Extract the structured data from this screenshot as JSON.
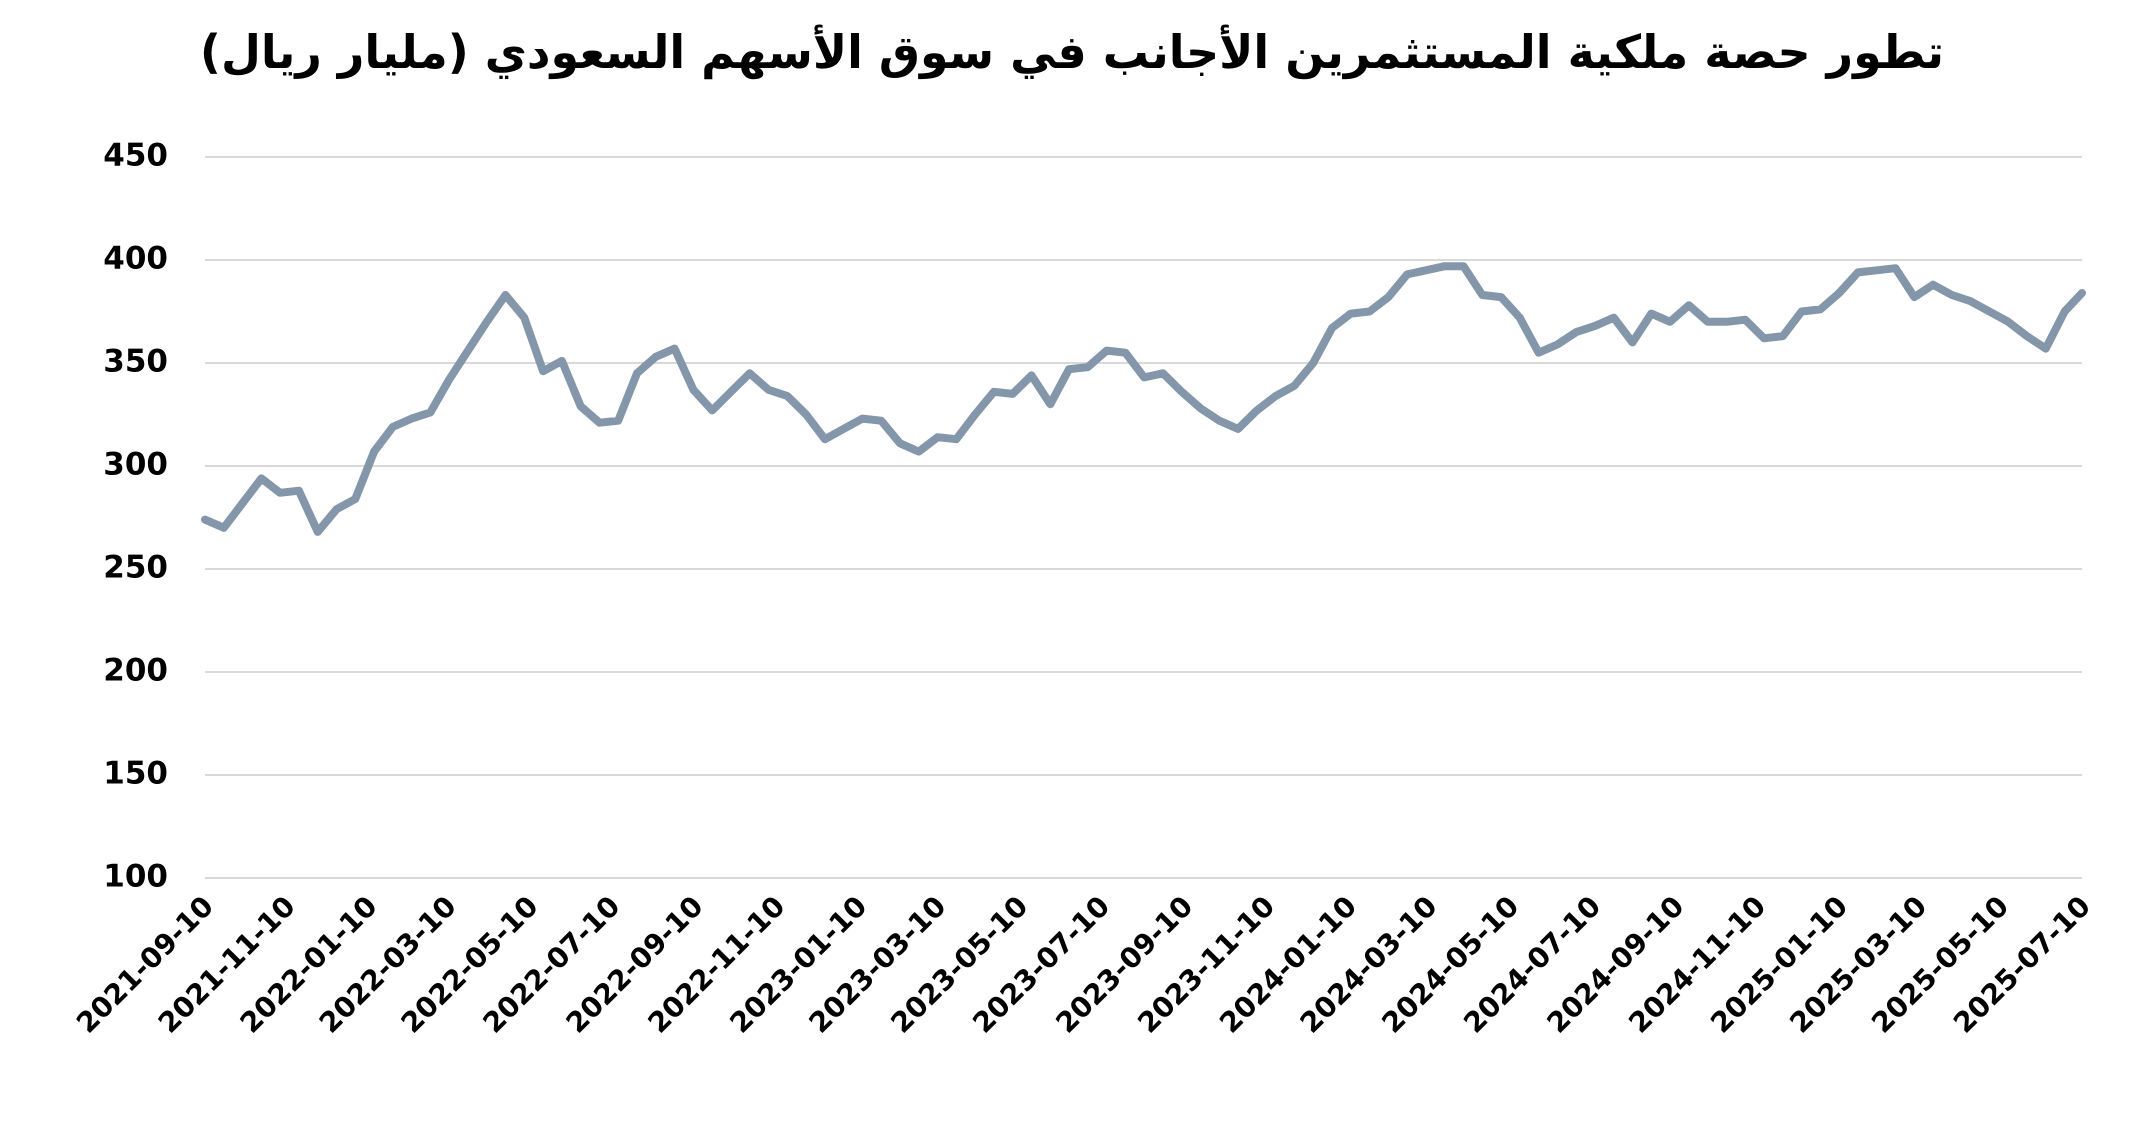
{
  "chart_data": {
    "type": "line",
    "title": "تطور حصة ملكية المستثمرين الأجانب في سوق الأسهم السعودي (مليار ريال)",
    "x": [
      "2021-09-10",
      "2021-09-24",
      "2021-10-08",
      "2021-10-22",
      "2021-11-05",
      "2021-11-19",
      "2021-12-03",
      "2021-12-17",
      "2021-12-31",
      "2022-01-14",
      "2022-01-28",
      "2022-02-11",
      "2022-02-25",
      "2022-03-11",
      "2022-03-25",
      "2022-04-08",
      "2022-04-22",
      "2022-05-06",
      "2022-05-20",
      "2022-06-03",
      "2022-06-17",
      "2022-07-01",
      "2022-07-15",
      "2022-07-29",
      "2022-08-12",
      "2022-08-26",
      "2022-09-09",
      "2022-09-23",
      "2022-10-07",
      "2022-10-21",
      "2022-11-04",
      "2022-11-18",
      "2022-12-02",
      "2022-12-16",
      "2022-12-30",
      "2023-01-13",
      "2023-01-27",
      "2023-02-10",
      "2023-02-24",
      "2023-03-10",
      "2023-03-24",
      "2023-04-07",
      "2023-04-21",
      "2023-05-05",
      "2023-05-19",
      "2023-06-02",
      "2023-06-16",
      "2023-06-30",
      "2023-07-14",
      "2023-07-28",
      "2023-08-11",
      "2023-08-25",
      "2023-09-08",
      "2023-09-22",
      "2023-10-06",
      "2023-10-20",
      "2023-11-03",
      "2023-11-17",
      "2023-12-01",
      "2023-12-15",
      "2023-12-29",
      "2024-01-12",
      "2024-01-26",
      "2024-02-09",
      "2024-02-23",
      "2024-03-08",
      "2024-03-22",
      "2024-04-05",
      "2024-04-19",
      "2024-05-03",
      "2024-05-17",
      "2024-05-31",
      "2024-06-14",
      "2024-06-28",
      "2024-07-12",
      "2024-07-26",
      "2024-08-09",
      "2024-08-23",
      "2024-09-06",
      "2024-09-20",
      "2024-10-04",
      "2024-10-18",
      "2024-11-01",
      "2024-11-15",
      "2024-11-29",
      "2024-12-13",
      "2024-12-27",
      "2025-01-10",
      "2025-01-24",
      "2025-02-07",
      "2025-02-21",
      "2025-03-07",
      "2025-03-21",
      "2025-04-04",
      "2025-04-18",
      "2025-05-02",
      "2025-05-16",
      "2025-05-30",
      "2025-06-13",
      "2025-06-27",
      "2025-07-10"
    ],
    "series": [
      {
        "color": "#8496aa",
        "values": [
          274,
          270,
          282,
          294,
          287,
          288,
          268,
          279,
          284,
          307,
          319,
          323,
          326,
          342,
          356,
          370,
          383,
          372,
          346,
          351,
          329,
          321,
          322,
          345,
          353,
          357,
          337,
          327,
          336,
          345,
          337,
          334,
          325,
          313,
          318,
          323,
          322,
          311,
          307,
          314,
          313,
          325,
          336,
          335,
          344,
          330,
          347,
          348,
          356,
          355,
          343,
          345,
          336,
          328,
          322,
          318,
          327,
          334,
          339,
          350,
          367,
          374,
          375,
          382,
          393,
          395,
          397,
          397,
          383,
          382,
          372,
          355,
          359,
          365,
          368,
          372,
          360,
          374,
          370,
          378,
          370,
          370,
          371,
          362,
          363,
          375,
          376,
          384,
          394,
          395,
          396,
          382,
          388,
          383,
          380,
          375,
          370,
          363,
          357,
          375,
          384
        ]
      }
    ],
    "xlim": [
      "2021-09-10",
      "2025-07-10"
    ],
    "xticks": [
      "2021-09-10",
      "2021-11-10",
      "2022-01-10",
      "2022-03-10",
      "2022-05-10",
      "2022-07-10",
      "2022-09-10",
      "2022-11-10",
      "2023-01-10",
      "2023-03-10",
      "2023-05-10",
      "2023-07-10",
      "2023-09-10",
      "2023-11-10",
      "2024-01-10",
      "2024-03-10",
      "2024-05-10",
      "2024-07-10",
      "2024-09-10",
      "2024-11-10",
      "2025-01-10",
      "2025-03-10",
      "2025-05-10",
      "2025-07-10"
    ],
    "ylim": [
      100,
      450
    ],
    "yticks": [
      100,
      150,
      200,
      250,
      300,
      350,
      400,
      450
    ],
    "grid": true
  }
}
